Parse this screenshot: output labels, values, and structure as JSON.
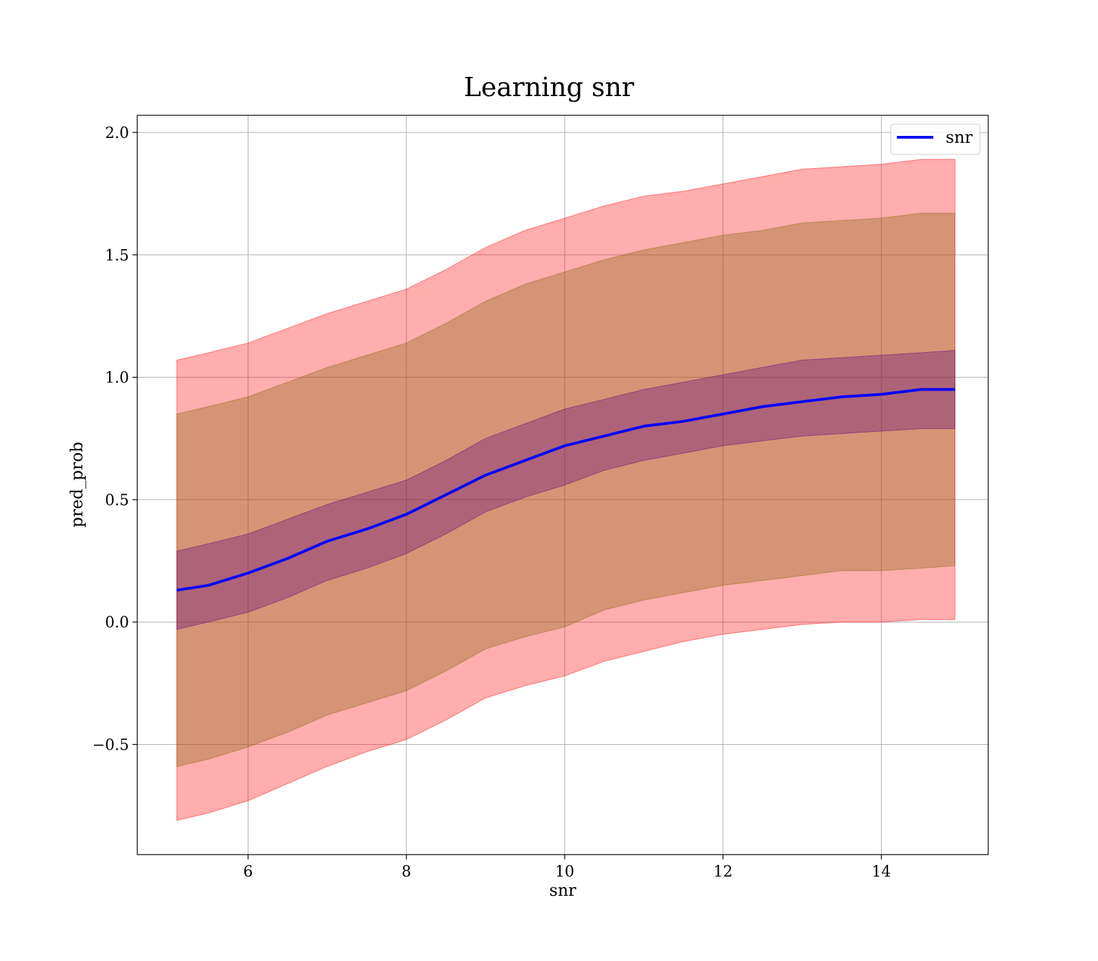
{
  "chart_data": {
    "type": "line",
    "title": "Learning snr",
    "xlabel": "snr",
    "ylabel": "pred_prob",
    "xlim": [
      4.6,
      15.35
    ],
    "ylim": [
      -0.95,
      2.07
    ],
    "xticks": [
      6,
      8,
      10,
      12,
      14
    ],
    "xtick_labels": [
      "6",
      "8",
      "10",
      "12",
      "14"
    ],
    "yticks": [
      -0.5,
      0.0,
      0.5,
      1.0,
      1.5,
      2.0
    ],
    "ytick_labels": [
      "−0.5",
      "0.0",
      "0.5",
      "1.0",
      "1.5",
      "2.0"
    ],
    "grid": true,
    "legend_position": "top-right",
    "x": [
      5.1,
      5.5,
      6.0,
      6.5,
      7.0,
      7.5,
      8.0,
      8.5,
      9.0,
      9.5,
      10.0,
      10.5,
      11.0,
      11.5,
      12.0,
      12.5,
      13.0,
      13.5,
      14.0,
      14.5,
      14.93
    ],
    "series": [
      {
        "name": "snr",
        "color": "#0000ff",
        "values": [
          0.13,
          0.15,
          0.2,
          0.26,
          0.33,
          0.38,
          0.44,
          0.52,
          0.6,
          0.66,
          0.72,
          0.76,
          0.8,
          0.82,
          0.85,
          0.88,
          0.9,
          0.92,
          0.93,
          0.95,
          0.95
        ]
      }
    ],
    "bands": [
      {
        "color": "#ff0000",
        "opacity": 0.32,
        "lower": [
          -0.81,
          -0.78,
          -0.73,
          -0.66,
          -0.59,
          -0.53,
          -0.48,
          -0.4,
          -0.31,
          -0.26,
          -0.22,
          -0.16,
          -0.12,
          -0.08,
          -0.05,
          -0.03,
          -0.01,
          0.0,
          0.0,
          0.01,
          0.01
        ],
        "upper": [
          1.07,
          1.1,
          1.14,
          1.2,
          1.26,
          1.31,
          1.36,
          1.44,
          1.53,
          1.6,
          1.65,
          1.7,
          1.74,
          1.76,
          1.79,
          1.82,
          1.85,
          1.86,
          1.87,
          1.89,
          1.89
        ]
      },
      {
        "color": "#8b6914",
        "opacity": 0.36,
        "lower": [
          -0.59,
          -0.56,
          -0.51,
          -0.45,
          -0.38,
          -0.33,
          -0.28,
          -0.2,
          -0.11,
          -0.06,
          -0.02,
          0.05,
          0.09,
          0.12,
          0.15,
          0.17,
          0.19,
          0.21,
          0.21,
          0.22,
          0.23
        ],
        "upper": [
          0.85,
          0.88,
          0.92,
          0.98,
          1.04,
          1.09,
          1.14,
          1.22,
          1.31,
          1.38,
          1.43,
          1.48,
          1.52,
          1.55,
          1.58,
          1.6,
          1.63,
          1.64,
          1.65,
          1.67,
          1.67
        ]
      },
      {
        "color": "#5c0080",
        "opacity": 0.32,
        "lower": [
          -0.03,
          0.0,
          0.04,
          0.1,
          0.17,
          0.22,
          0.28,
          0.36,
          0.45,
          0.51,
          0.56,
          0.62,
          0.66,
          0.69,
          0.72,
          0.74,
          0.76,
          0.77,
          0.78,
          0.79,
          0.79
        ],
        "upper": [
          0.29,
          0.32,
          0.36,
          0.42,
          0.48,
          0.53,
          0.58,
          0.66,
          0.75,
          0.81,
          0.87,
          0.91,
          0.95,
          0.98,
          1.01,
          1.04,
          1.07,
          1.08,
          1.09,
          1.1,
          1.11
        ]
      }
    ]
  }
}
